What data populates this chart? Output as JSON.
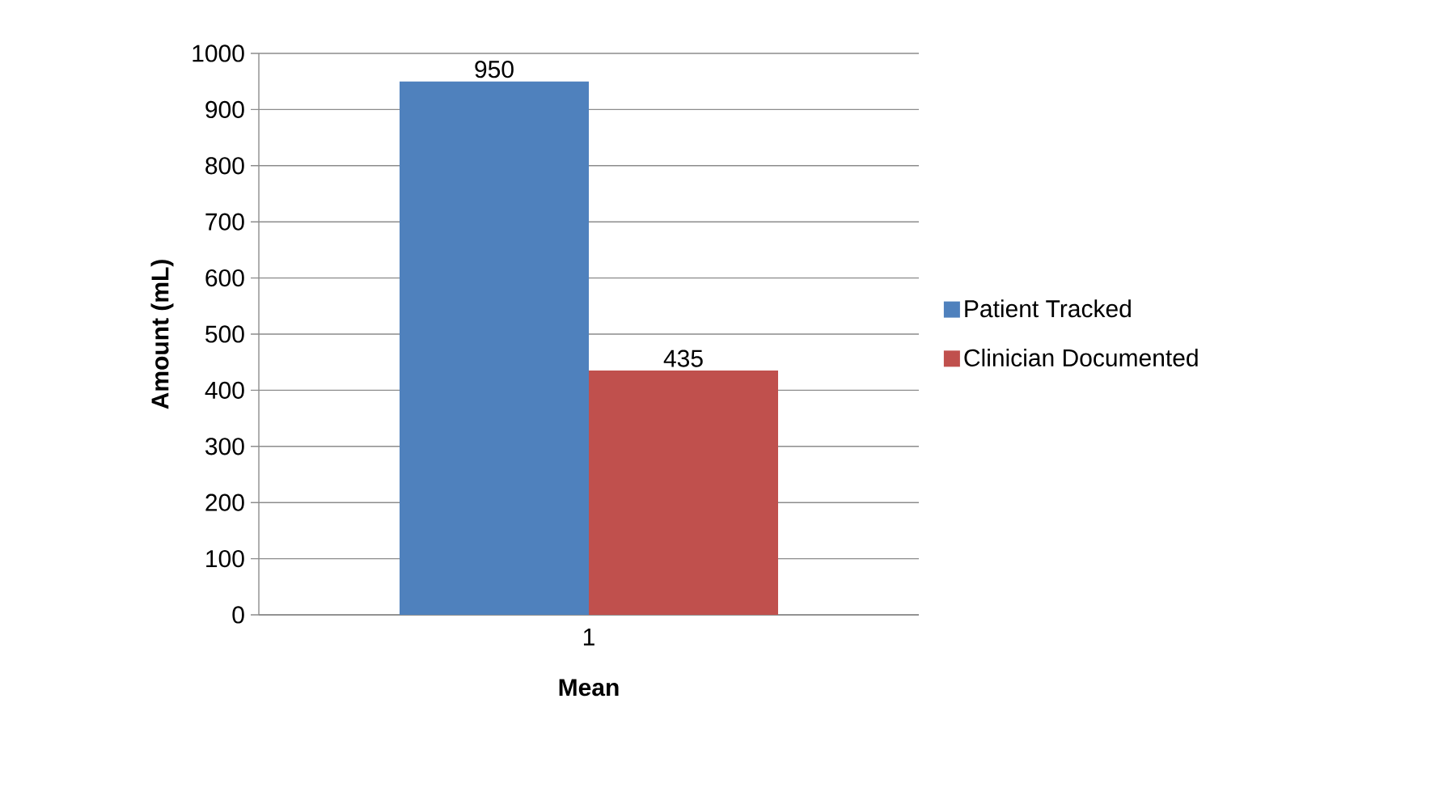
{
  "chart_data": {
    "type": "bar",
    "xlabel": "Mean",
    "ylabel": "Amount (mL)",
    "categories": [
      "1"
    ],
    "series": [
      {
        "name": "Patient Tracked",
        "color": "#4f81bd",
        "values": [
          950
        ]
      },
      {
        "name": "Clinician Documented",
        "color": "#c0504d",
        "values": [
          435
        ]
      }
    ],
    "ylim": [
      0,
      1000
    ],
    "yticks": [
      0,
      100,
      200,
      300,
      400,
      500,
      600,
      700,
      800,
      900,
      1000
    ],
    "grid": "y",
    "legend": "right",
    "data_labels": true
  }
}
